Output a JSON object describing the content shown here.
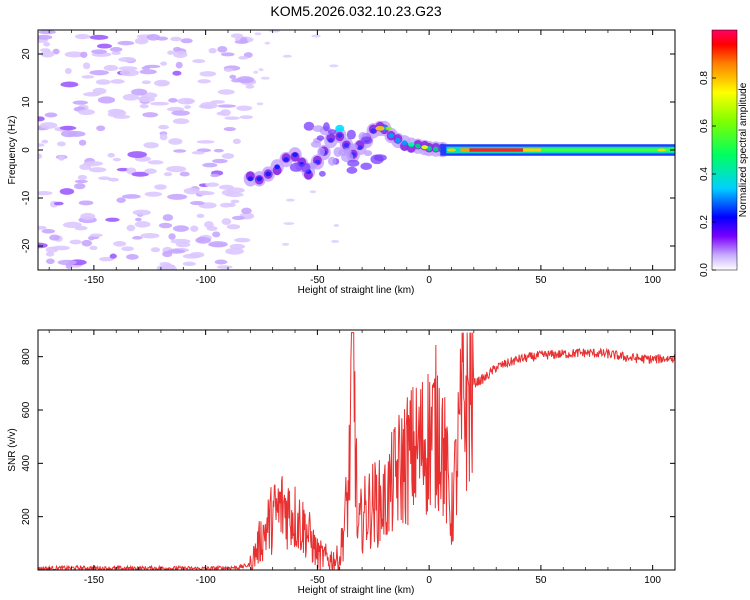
{
  "title": "KOM5.2026.032.10.23.G23",
  "chart_data": [
    {
      "type": "heatmap",
      "name": "spectrogram",
      "xlabel": "Height of straight line (km)",
      "ylabel": "Frequency (Hz)",
      "xlim": [
        -175,
        110
      ],
      "ylim": [
        -25,
        25
      ],
      "xticks": [
        -150,
        -100,
        -50,
        0,
        50,
        100
      ],
      "yticks": [
        -20,
        -10,
        0,
        10,
        20
      ],
      "colorbar": {
        "label": "Normalized spectral amplitude",
        "range": [
          0,
          1
        ],
        "ticks": [
          0.0,
          0.2,
          0.4,
          0.6,
          0.8
        ]
      },
      "features": [
        {
          "region": "noise",
          "x": [
            -175,
            -80
          ],
          "freq": [
            -25,
            25
          ],
          "amplitude": 0.05
        },
        {
          "region": "onset",
          "x": [
            -80,
            -60
          ],
          "freq": [
            -7,
            -2
          ],
          "amplitude": 0.2
        },
        {
          "region": "rising",
          "x": [
            -60,
            -20
          ],
          "freq": [
            -5,
            5
          ],
          "amplitude": 0.15
        },
        {
          "region": "tone",
          "x": [
            -20,
            110
          ],
          "freq": [
            -1,
            1
          ],
          "amplitude": 0.95
        }
      ]
    },
    {
      "type": "line",
      "name": "snr",
      "xlabel": "Height of straight line (km)",
      "ylabel": "SNR (v/v)",
      "xlim": [
        -175,
        110
      ],
      "ylim": [
        0,
        900
      ],
      "xticks": [
        -150,
        -100,
        -50,
        0,
        50,
        100
      ],
      "yticks": [
        200,
        400,
        600,
        800
      ],
      "color": "#e83030",
      "series": [
        {
          "name": "SNR",
          "x": [
            -175,
            -160,
            -140,
            -120,
            -100,
            -85,
            -80,
            -75,
            -70,
            -65,
            -60,
            -55,
            -50,
            -45,
            -40,
            -36,
            -34,
            -32,
            -30,
            -25,
            -20,
            -15,
            -10,
            -5,
            0,
            5,
            10,
            15,
            20,
            25,
            30,
            40,
            50,
            60,
            70,
            80,
            90,
            100,
            110
          ],
          "values": [
            5,
            8,
            6,
            7,
            5,
            10,
            20,
            120,
            200,
            240,
            200,
            150,
            60,
            40,
            40,
            300,
            900,
            120,
            200,
            250,
            250,
            350,
            420,
            450,
            500,
            550,
            200,
            620,
            700,
            720,
            760,
            790,
            805,
            810,
            815,
            810,
            795,
            790,
            795
          ]
        }
      ]
    }
  ]
}
